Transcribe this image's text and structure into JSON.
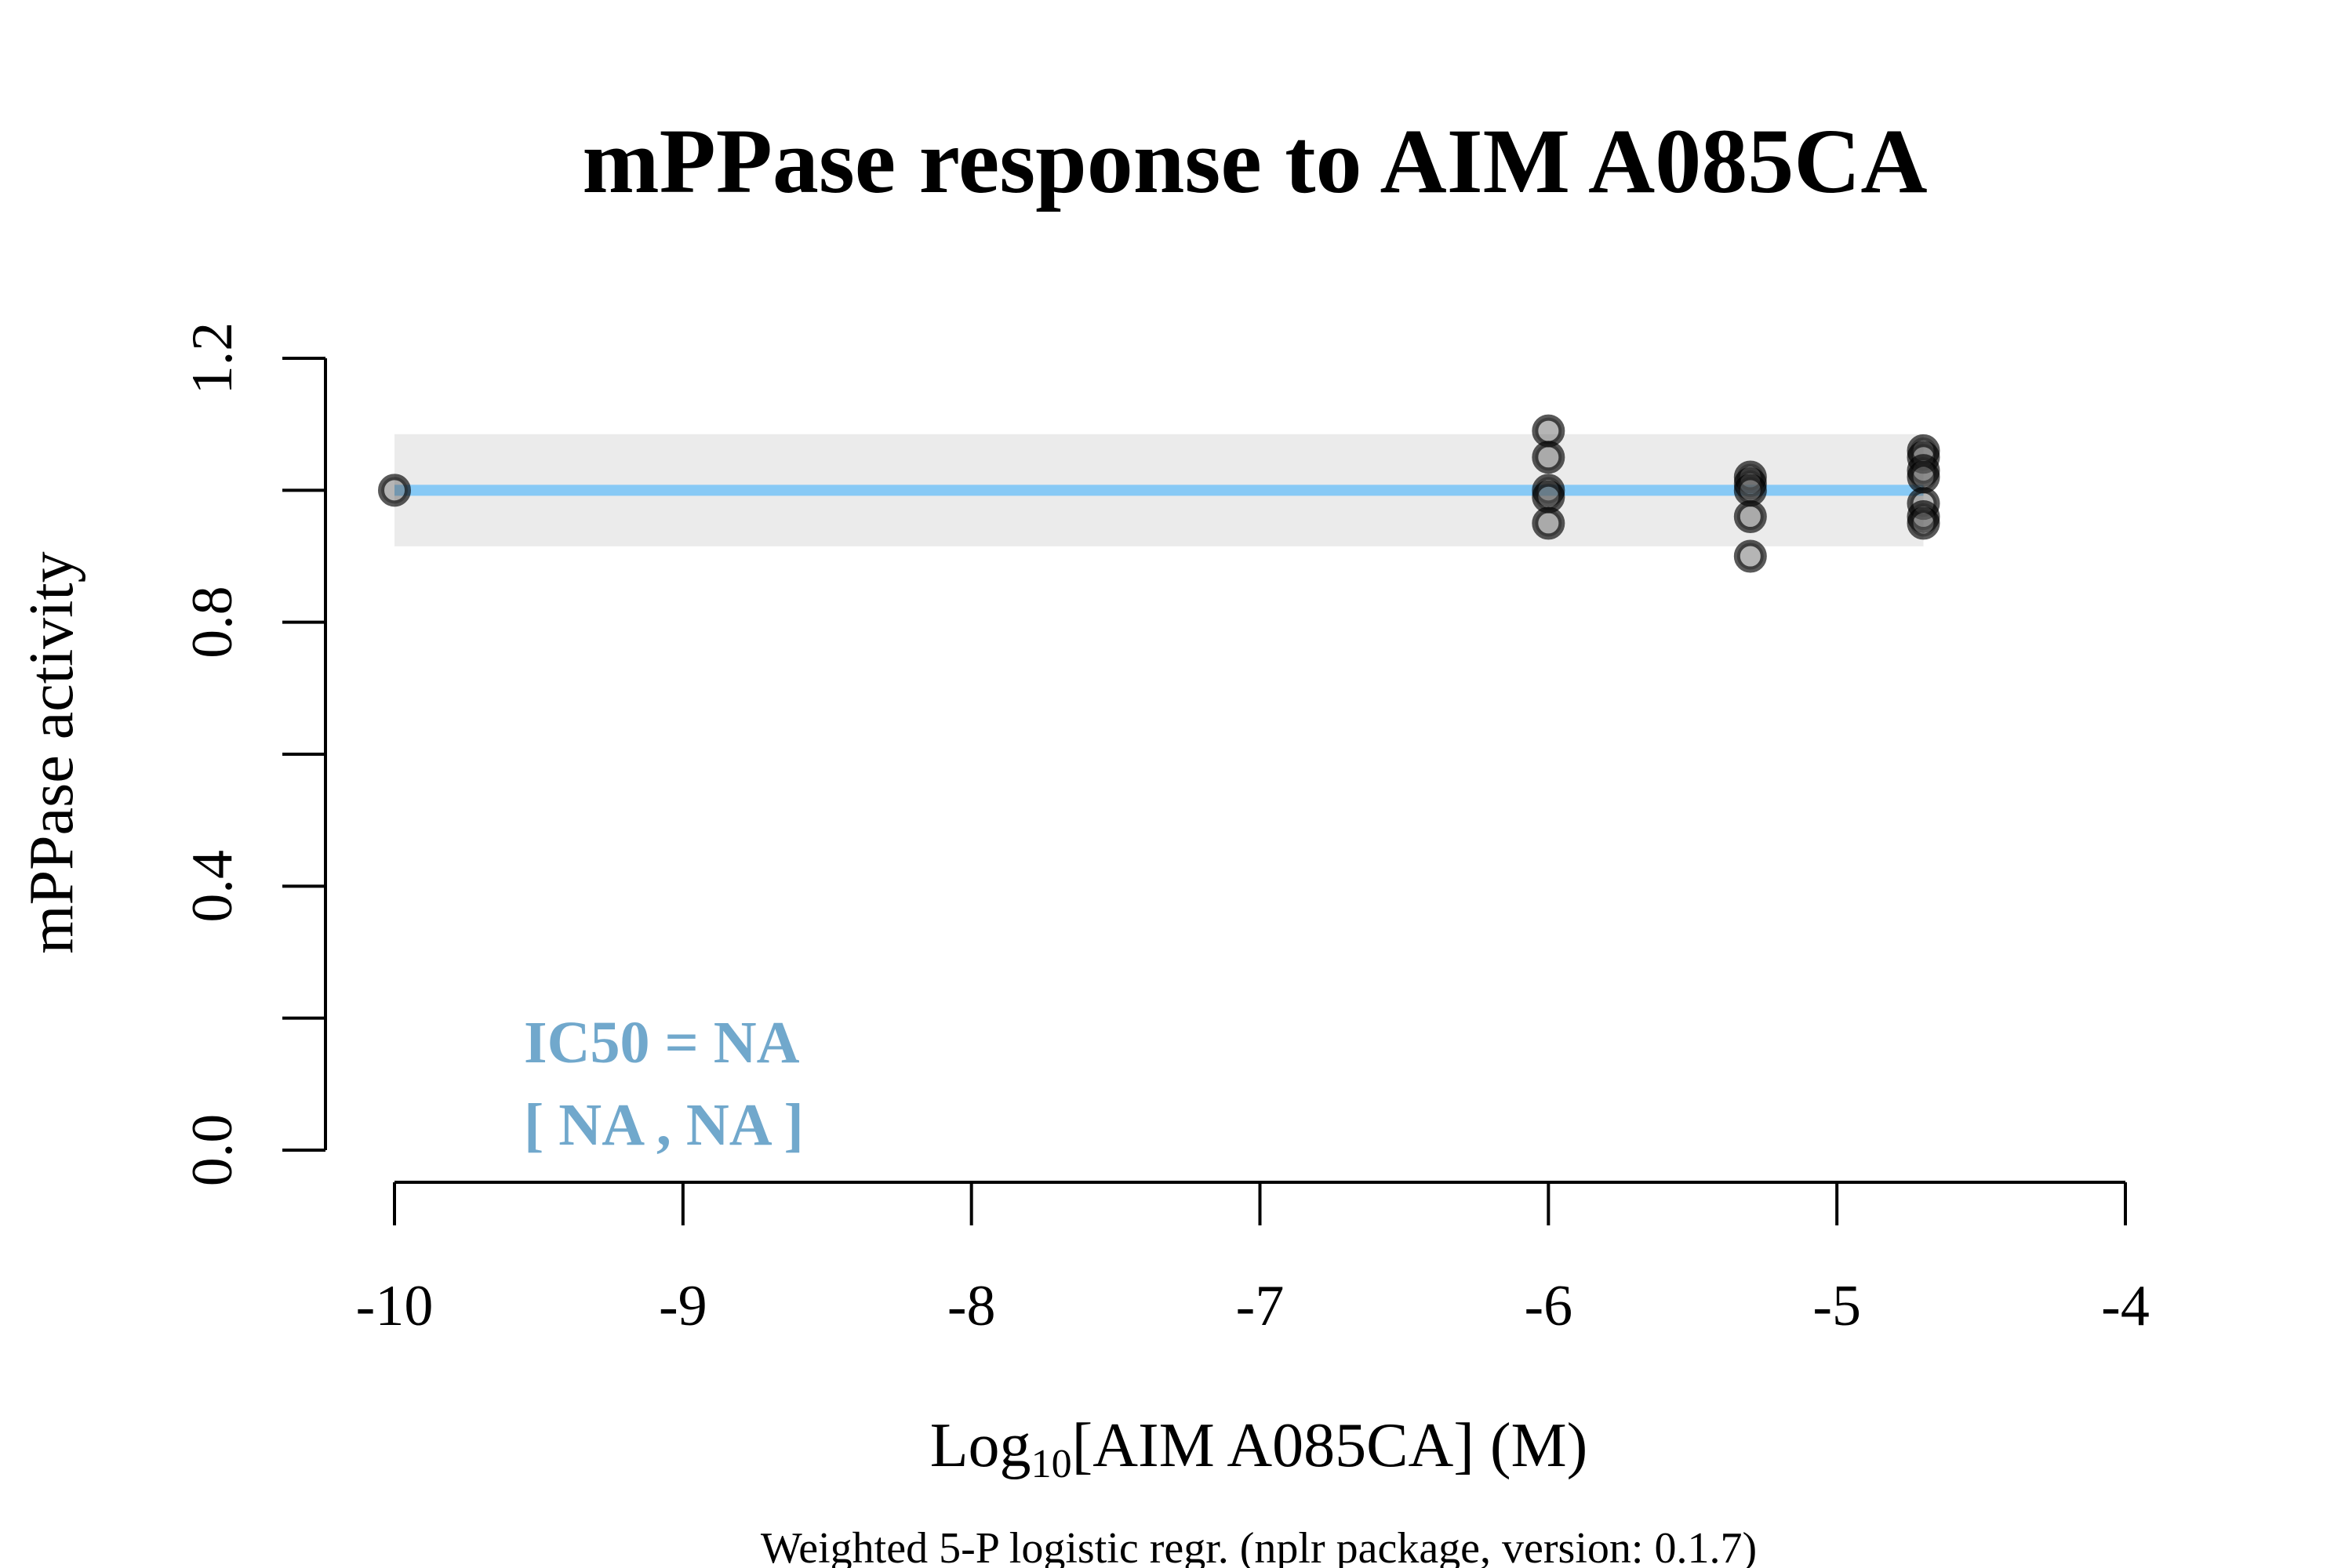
{
  "chart_data": {
    "type": "scatter",
    "title": "mPPase response to AIM A085CA",
    "ylabel": "mPPase activity",
    "xlabel": {
      "prefix": "Log",
      "subscript": "10",
      "suffix": "[AIM A085CA] (M)"
    },
    "caption": "Weighted 5-P logistic regr. (nplr package, version: 0.1.7)",
    "xlim": [
      -10,
      -4
    ],
    "ylim": [
      0.0,
      1.2
    ],
    "x_ticks": [
      -10,
      -9,
      -8,
      -7,
      -6,
      -5,
      -4
    ],
    "x_tick_labels": [
      "-10",
      "-9",
      "-8",
      "-7",
      "-6",
      "-5",
      "-4"
    ],
    "y_ticks": [
      0.0,
      0.2,
      0.4,
      0.6,
      0.8,
      1.0,
      1.2
    ],
    "y_tick_labels": [
      "0.0",
      "",
      "0.4",
      "",
      "0.8",
      "",
      "1.2"
    ],
    "points": [
      {
        "x": -10,
        "y": 1.0
      },
      {
        "x": -6.0,
        "y": 1.09
      },
      {
        "x": -6.0,
        "y": 1.05
      },
      {
        "x": -6.0,
        "y": 1.0
      },
      {
        "x": -6.0,
        "y": 0.99
      },
      {
        "x": -6.0,
        "y": 0.95
      },
      {
        "x": -5.3,
        "y": 1.02
      },
      {
        "x": -5.3,
        "y": 1.01
      },
      {
        "x": -5.3,
        "y": 1.0
      },
      {
        "x": -5.3,
        "y": 0.96
      },
      {
        "x": -5.3,
        "y": 0.9
      },
      {
        "x": -4.7,
        "y": 1.06
      },
      {
        "x": -4.7,
        "y": 1.05
      },
      {
        "x": -4.7,
        "y": 1.03
      },
      {
        "x": -4.7,
        "y": 1.02
      },
      {
        "x": -4.7,
        "y": 0.98
      },
      {
        "x": -4.7,
        "y": 0.96
      },
      {
        "x": -4.7,
        "y": 0.95
      }
    ],
    "fit_line": {
      "x": [
        -10,
        -4.7
      ],
      "y": [
        1.0,
        1.0
      ],
      "color": "#87c9f5"
    },
    "confidence_band": {
      "x": [
        -10,
        -4.7
      ],
      "y_low": 0.915,
      "y_high": 1.085,
      "color": "#ebebeb"
    },
    "ic50_text": {
      "line1": "IC50 = NA",
      "line2": "[ NA , NA ]",
      "color": "#71a8cc"
    },
    "point_color": "#555555"
  }
}
